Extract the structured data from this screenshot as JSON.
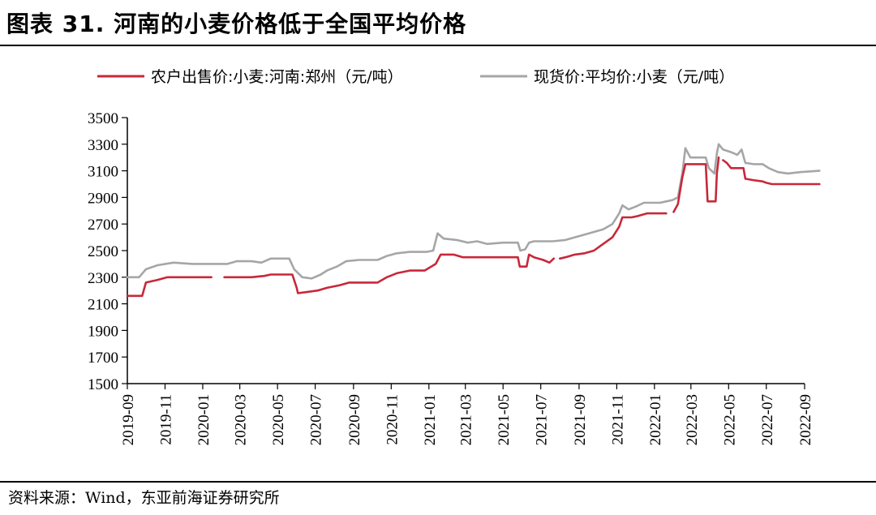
{
  "header": {
    "title": "图表 31. 河南的小麦价格低于全国平均价格"
  },
  "footer": {
    "source": "资料来源：Wind，东亚前海证券研究所"
  },
  "colors": {
    "farmer_price": "#c8283a",
    "spot_price": "#a6a6a6",
    "axis": "#000000"
  },
  "chart_data": {
    "type": "line",
    "title": "",
    "xlabel": "",
    "ylabel": "",
    "ylim": [
      1500,
      3500
    ],
    "yticks": [
      1500,
      1700,
      1900,
      2100,
      2300,
      2500,
      2700,
      2900,
      3100,
      3300,
      3500
    ],
    "xticks": [
      "2019-09",
      "2019-11",
      "2020-01",
      "2020-03",
      "2020-05",
      "2020-07",
      "2020-09",
      "2020-11",
      "2021-01",
      "2021-03",
      "2021-05",
      "2021-07",
      "2021-09",
      "2021-11",
      "2022-01",
      "2022-03",
      "2022-05",
      "2022-07",
      "2022-09"
    ],
    "legend_position": "top",
    "grid": false,
    "series": [
      {
        "name": "农户出售价:小麦:河南:郑州（元/吨）",
        "color": "#c8283a",
        "segments": [
          [
            [
              "2019-09-01",
              2160
            ],
            [
              "2019-09-25",
              2160
            ],
            [
              "2019-10-01",
              2260
            ],
            [
              "2019-10-20",
              2280
            ],
            [
              "2019-11-05",
              2300
            ],
            [
              "2019-12-15",
              2300
            ],
            [
              "2020-01-15",
              2300
            ]
          ],
          [
            [
              "2020-02-05",
              2300
            ],
            [
              "2020-03-20",
              2300
            ],
            [
              "2020-04-10",
              2310
            ],
            [
              "2020-04-20",
              2320
            ],
            [
              "2020-05-25",
              2320
            ],
            [
              "2020-06-01",
              2220
            ],
            [
              "2020-06-03",
              2180
            ],
            [
              "2020-06-20",
              2190
            ],
            [
              "2020-07-05",
              2200
            ],
            [
              "2020-07-20",
              2220
            ],
            [
              "2020-08-10",
              2240
            ],
            [
              "2020-08-25",
              2260
            ],
            [
              "2020-10-10",
              2260
            ],
            [
              "2020-10-25",
              2300
            ],
            [
              "2020-11-10",
              2330
            ],
            [
              "2020-12-01",
              2350
            ],
            [
              "2020-12-25",
              2350
            ],
            [
              "2021-01-12",
              2400
            ],
            [
              "2021-01-20",
              2470
            ],
            [
              "2021-02-10",
              2470
            ],
            [
              "2021-02-25",
              2450
            ],
            [
              "2021-04-15",
              2450
            ],
            [
              "2021-05-25",
              2450
            ],
            [
              "2021-05-28",
              2380
            ],
            [
              "2021-06-08",
              2380
            ],
            [
              "2021-06-12",
              2470
            ],
            [
              "2021-06-20",
              2450
            ],
            [
              "2021-07-05",
              2430
            ],
            [
              "2021-07-15",
              2410
            ],
            [
              "2021-07-22",
              2440
            ]
          ],
          [
            [
              "2021-08-01",
              2440
            ],
            [
              "2021-08-10",
              2450
            ],
            [
              "2021-08-25",
              2470
            ],
            [
              "2021-09-10",
              2480
            ],
            [
              "2021-09-25",
              2500
            ],
            [
              "2021-10-10",
              2550
            ],
            [
              "2021-10-25",
              2600
            ],
            [
              "2021-11-05",
              2680
            ],
            [
              "2021-11-10",
              2750
            ],
            [
              "2021-11-25",
              2750
            ],
            [
              "2021-12-05",
              2760
            ],
            [
              "2021-12-20",
              2780
            ],
            [
              "2022-01-20",
              2780
            ]
          ],
          [
            [
              "2022-02-01",
              2790
            ],
            [
              "2022-02-08",
              2850
            ],
            [
              "2022-02-15",
              3050
            ],
            [
              "2022-02-20",
              3150
            ],
            [
              "2022-03-10",
              3150
            ],
            [
              "2022-03-25",
              3150
            ],
            [
              "2022-03-28",
              2870
            ],
            [
              "2022-04-10",
              2870
            ],
            [
              "2022-04-12",
              3080
            ],
            [
              "2022-04-15",
              3200
            ]
          ],
          [
            [
              "2022-04-22",
              3180
            ],
            [
              "2022-04-28",
              3160
            ],
            [
              "2022-05-05",
              3120
            ],
            [
              "2022-05-25",
              3120
            ],
            [
              "2022-05-28",
              3040
            ],
            [
              "2022-06-10",
              3030
            ],
            [
              "2022-06-25",
              3020
            ],
            [
              "2022-07-01",
              3010
            ],
            [
              "2022-07-10",
              3000
            ],
            [
              "2022-09-25",
              3000
            ]
          ]
        ]
      },
      {
        "name": "现货价:平均价:小麦（元/吨）",
        "color": "#a6a6a6",
        "segments": [
          [
            [
              "2019-09-01",
              2300
            ],
            [
              "2019-09-20",
              2300
            ],
            [
              "2019-10-01",
              2360
            ],
            [
              "2019-10-20",
              2390
            ],
            [
              "2019-11-15",
              2410
            ],
            [
              "2019-12-15",
              2400
            ],
            [
              "2020-02-10",
              2400
            ],
            [
              "2020-02-25",
              2420
            ],
            [
              "2020-03-20",
              2420
            ],
            [
              "2020-04-05",
              2410
            ],
            [
              "2020-04-20",
              2440
            ],
            [
              "2020-05-20",
              2440
            ],
            [
              "2020-05-28",
              2360
            ],
            [
              "2020-06-10",
              2300
            ],
            [
              "2020-06-25",
              2290
            ],
            [
              "2020-07-10",
              2320
            ],
            [
              "2020-07-20",
              2350
            ],
            [
              "2020-08-05",
              2380
            ],
            [
              "2020-08-20",
              2420
            ],
            [
              "2020-09-10",
              2430
            ],
            [
              "2020-10-10",
              2430
            ],
            [
              "2020-10-25",
              2460
            ],
            [
              "2020-11-10",
              2480
            ],
            [
              "2020-12-01",
              2490
            ],
            [
              "2020-12-28",
              2490
            ],
            [
              "2021-01-08",
              2500
            ],
            [
              "2021-01-15",
              2630
            ],
            [
              "2021-01-25",
              2590
            ],
            [
              "2021-02-15",
              2580
            ],
            [
              "2021-03-05",
              2560
            ],
            [
              "2021-03-20",
              2570
            ],
            [
              "2021-04-05",
              2550
            ],
            [
              "2021-05-01",
              2560
            ],
            [
              "2021-05-25",
              2560
            ],
            [
              "2021-05-29",
              2500
            ],
            [
              "2021-06-06",
              2510
            ],
            [
              "2021-06-12",
              2560
            ],
            [
              "2021-06-20",
              2570
            ],
            [
              "2021-07-20",
              2570
            ],
            [
              "2021-08-10",
              2580
            ],
            [
              "2021-08-25",
              2600
            ],
            [
              "2021-09-10",
              2620
            ],
            [
              "2021-09-25",
              2640
            ],
            [
              "2021-10-10",
              2660
            ],
            [
              "2021-10-25",
              2700
            ],
            [
              "2021-11-05",
              2780
            ],
            [
              "2021-11-10",
              2840
            ],
            [
              "2021-11-20",
              2810
            ],
            [
              "2021-12-01",
              2830
            ],
            [
              "2021-12-15",
              2860
            ],
            [
              "2022-01-10",
              2860
            ],
            [
              "2022-01-30",
              2880
            ],
            [
              "2022-02-08",
              2900
            ],
            [
              "2022-02-15",
              3080
            ],
            [
              "2022-02-20",
              3270
            ],
            [
              "2022-02-28",
              3200
            ],
            [
              "2022-03-25",
              3200
            ],
            [
              "2022-03-30",
              3120
            ],
            [
              "2022-04-08",
              3080
            ],
            [
              "2022-04-12",
              3230
            ],
            [
              "2022-04-15",
              3300
            ],
            [
              "2022-04-22",
              3260
            ],
            [
              "2022-05-05",
              3240
            ],
            [
              "2022-05-15",
              3220
            ],
            [
              "2022-05-22",
              3260
            ],
            [
              "2022-05-28",
              3160
            ],
            [
              "2022-06-10",
              3150
            ],
            [
              "2022-06-25",
              3150
            ],
            [
              "2022-07-05",
              3120
            ],
            [
              "2022-07-20",
              3090
            ],
            [
              "2022-08-05",
              3080
            ],
            [
              "2022-08-25",
              3090
            ],
            [
              "2022-09-25",
              3100
            ]
          ]
        ]
      }
    ]
  }
}
